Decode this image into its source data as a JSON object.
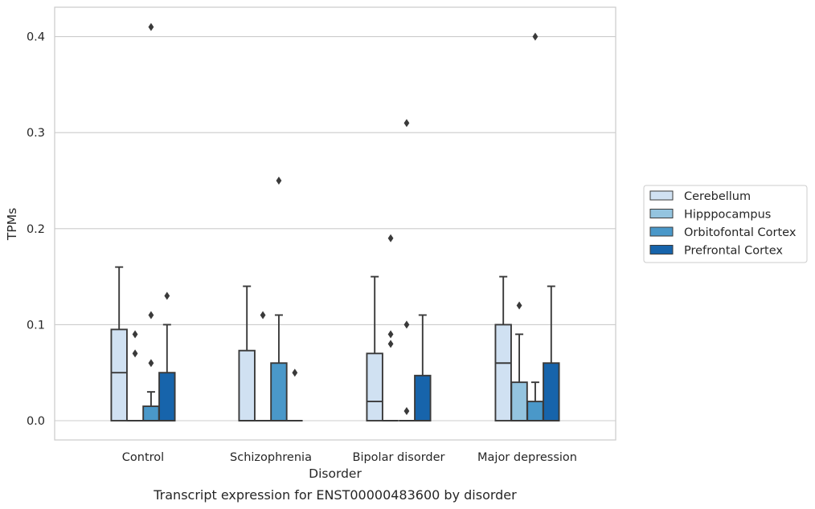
{
  "chart_data": {
    "type": "boxplot",
    "title": "",
    "caption": "Transcript expression for ENST00000483600 by disorder",
    "xlabel": "Disorder",
    "ylabel": "TPMs",
    "ylim": [
      -0.02,
      0.43
    ],
    "yticks": [
      0.0,
      0.1,
      0.2,
      0.3,
      0.4
    ],
    "ytick_labels": [
      "0.0",
      "0.1",
      "0.2",
      "0.3",
      "0.4"
    ],
    "grid": "horizontal",
    "legend_position": "right",
    "categories": [
      "Control",
      "Schizophrenia",
      "Bipolar disorder",
      "Major depression"
    ],
    "series": [
      {
        "name": "Cerebellum",
        "color": "#d0e1f2",
        "boxes": [
          {
            "q1": 0.0,
            "median": 0.05,
            "q3": 0.095,
            "whisker_low": 0.0,
            "whisker_high": 0.16,
            "outliers": []
          },
          {
            "q1": 0.0,
            "median": 0.0,
            "q3": 0.073,
            "whisker_low": 0.0,
            "whisker_high": 0.14,
            "outliers": []
          },
          {
            "q1": 0.0,
            "median": 0.02,
            "q3": 0.07,
            "whisker_low": 0.0,
            "whisker_high": 0.15,
            "outliers": []
          },
          {
            "q1": 0.0,
            "median": 0.06,
            "q3": 0.1,
            "whisker_low": 0.0,
            "whisker_high": 0.15,
            "outliers": []
          }
        ]
      },
      {
        "name": "Hipppocampus",
        "color": "#94c4df",
        "boxes": [
          {
            "q1": 0.0,
            "median": 0.0,
            "q3": 0.0,
            "whisker_low": 0.0,
            "whisker_high": 0.0,
            "outliers": [
              0.07,
              0.09
            ]
          },
          {
            "q1": 0.0,
            "median": 0.0,
            "q3": 0.0,
            "whisker_low": 0.0,
            "whisker_high": 0.0,
            "outliers": [
              0.11
            ]
          },
          {
            "q1": 0.0,
            "median": 0.0,
            "q3": 0.0,
            "whisker_low": 0.0,
            "whisker_high": 0.0,
            "outliers": [
              0.08,
              0.09,
              0.19
            ]
          },
          {
            "q1": 0.0,
            "median": 0.0,
            "q3": 0.04,
            "whisker_low": 0.0,
            "whisker_high": 0.09,
            "outliers": [
              0.12
            ]
          }
        ]
      },
      {
        "name": "Orbitofontal Cortex",
        "color": "#4a98c9",
        "boxes": [
          {
            "q1": 0.0,
            "median": 0.0,
            "q3": 0.015,
            "whisker_low": 0.0,
            "whisker_high": 0.03,
            "outliers": [
              0.06,
              0.11,
              0.41
            ]
          },
          {
            "q1": 0.0,
            "median": 0.0,
            "q3": 0.06,
            "whisker_low": 0.0,
            "whisker_high": 0.11,
            "outliers": [
              0.25
            ]
          },
          {
            "q1": 0.0,
            "median": 0.0,
            "q3": 0.0,
            "whisker_low": 0.0,
            "whisker_high": 0.0,
            "outliers": [
              0.01,
              0.1,
              0.31
            ]
          },
          {
            "q1": 0.0,
            "median": 0.0,
            "q3": 0.02,
            "whisker_low": 0.0,
            "whisker_high": 0.04,
            "outliers": [
              0.4
            ]
          }
        ]
      },
      {
        "name": "Prefrontal Cortex",
        "color": "#1764ab",
        "boxes": [
          {
            "q1": 0.0,
            "median": 0.0,
            "q3": 0.05,
            "whisker_low": 0.0,
            "whisker_high": 0.1,
            "outliers": [
              0.13
            ]
          },
          {
            "q1": 0.0,
            "median": 0.0,
            "q3": 0.0,
            "whisker_low": 0.0,
            "whisker_high": 0.0,
            "outliers": [
              0.05
            ]
          },
          {
            "q1": 0.0,
            "median": 0.0,
            "q3": 0.047,
            "whisker_low": 0.0,
            "whisker_high": 0.11,
            "outliers": []
          },
          {
            "q1": 0.0,
            "median": 0.0,
            "q3": 0.06,
            "whisker_low": 0.0,
            "whisker_high": 0.14,
            "outliers": []
          }
        ]
      }
    ]
  }
}
